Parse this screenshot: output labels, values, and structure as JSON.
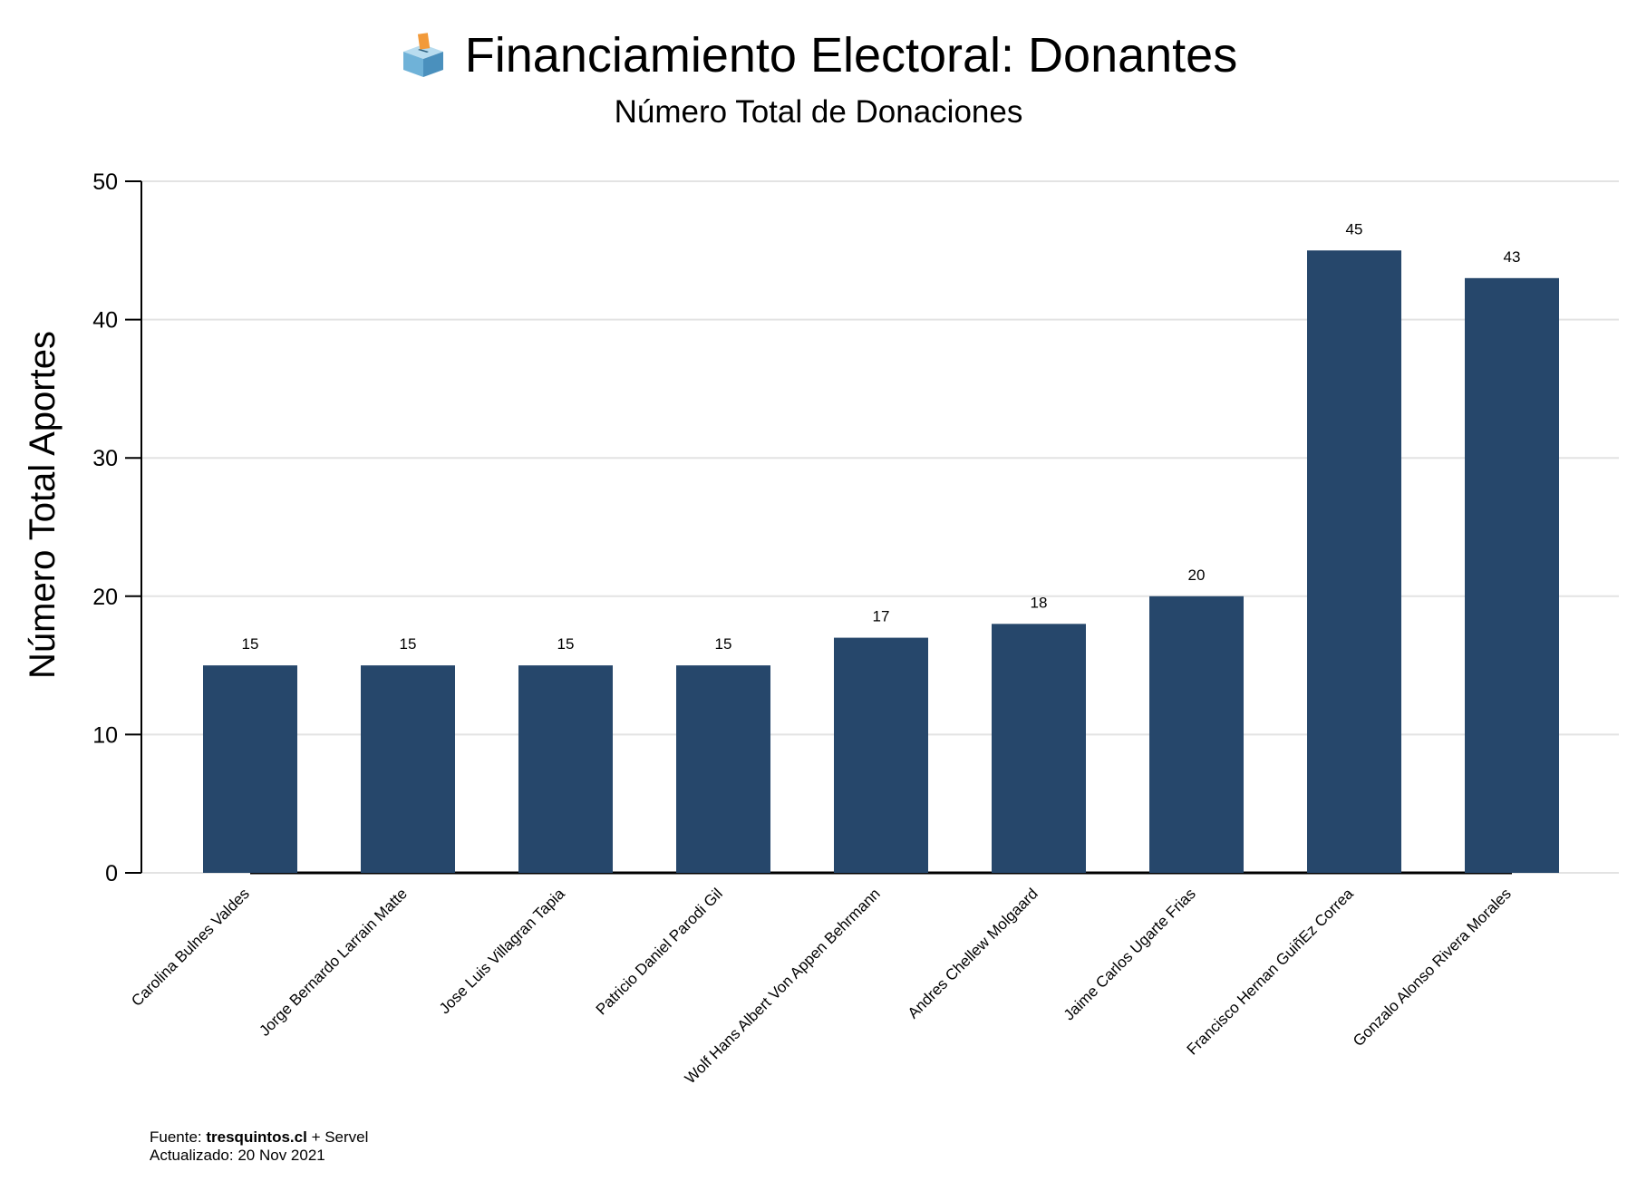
{
  "chart_data": {
    "type": "bar",
    "title": "Financiamiento Electoral: Donantes",
    "subtitle": "Número Total de Donaciones",
    "xlabel": "",
    "ylabel": "Número Total Aportes",
    "ylim": [
      0,
      50
    ],
    "yticks": [
      0,
      10,
      20,
      30,
      40,
      50
    ],
    "grid": true,
    "categories": [
      "Carolina Bulnes Valdes",
      "Jorge Bernardo Larrain Matte",
      "Jose Luis Villagran Tapia",
      "Patricio Daniel Parodi Gil",
      "Wolf Hans Albert Von Appen Behrmann",
      "Andres Chellew Molgaard",
      "Jaime Carlos Ugarte Frias",
      "Francisco Hernan GuiñEz Correa",
      "Gonzalo Alonso Rivera Morales"
    ],
    "values": [
      15,
      15,
      15,
      15,
      17,
      18,
      20,
      45,
      43
    ],
    "bar_color": "#26476b"
  },
  "title_icon": "ballot-box-icon",
  "footer": {
    "source_prefix": "Fuente: ",
    "source_name": "tresquintos.cl",
    "source_suffix": " + Servel",
    "updated": "Actualizado: 20 Nov 2021"
  }
}
